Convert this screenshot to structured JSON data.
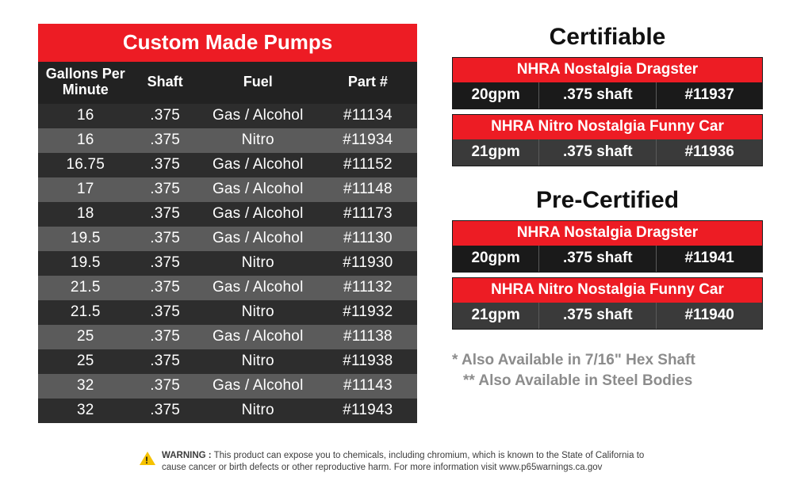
{
  "pumps": {
    "title": "Custom Made Pumps",
    "columns": {
      "gpm_line1": "Gallons Per",
      "gpm_line2": "Minute",
      "shaft": "Shaft",
      "fuel": "Fuel",
      "part": "Part #"
    },
    "rows": [
      {
        "gpm": "16",
        "shaft": ".375",
        "fuel": "Gas / Alcohol",
        "part": "#11134"
      },
      {
        "gpm": "16",
        "shaft": ".375",
        "fuel": "Nitro",
        "part": "#11934"
      },
      {
        "gpm": "16.75",
        "shaft": ".375",
        "fuel": "Gas / Alcohol",
        "part": "#11152"
      },
      {
        "gpm": "17",
        "shaft": ".375",
        "fuel": "Gas / Alcohol",
        "part": "#11148"
      },
      {
        "gpm": "18",
        "shaft": ".375",
        "fuel": "Gas / Alcohol",
        "part": "#11173"
      },
      {
        "gpm": "19.5",
        "shaft": ".375",
        "fuel": "Gas / Alcohol",
        "part": "#11130"
      },
      {
        "gpm": "19.5",
        "shaft": ".375",
        "fuel": "Nitro",
        "part": "#11930"
      },
      {
        "gpm": "21.5",
        "shaft": ".375",
        "fuel": "Gas / Alcohol",
        "part": "#11132"
      },
      {
        "gpm": "21.5",
        "shaft": ".375",
        "fuel": "Nitro",
        "part": "#11932"
      },
      {
        "gpm": "25",
        "shaft": ".375",
        "fuel": "Gas / Alcohol",
        "part": "#11138"
      },
      {
        "gpm": "25",
        "shaft": ".375",
        "fuel": "Nitro",
        "part": "#11938"
      },
      {
        "gpm": "32",
        "shaft": ".375",
        "fuel": "Gas / Alcohol",
        "part": "#11143"
      },
      {
        "gpm": "32",
        "shaft": ".375",
        "fuel": "Nitro",
        "part": "#11943"
      }
    ]
  },
  "certifiable": {
    "title": "Certifiable",
    "cards": [
      {
        "caption": "NHRA Nostalgia Dragster",
        "gpm": "20gpm",
        "shaft": ".375 shaft",
        "part": "#11937",
        "alt": false
      },
      {
        "caption": "NHRA Nitro Nostalgia Funny Car",
        "gpm": "21gpm",
        "shaft": ".375 shaft",
        "part": "#11936",
        "alt": true
      }
    ]
  },
  "precertified": {
    "title": "Pre-Certified",
    "cards": [
      {
        "caption": "NHRA Nostalgia Dragster",
        "gpm": "20gpm",
        "shaft": ".375 shaft",
        "part": "#11941",
        "alt": false
      },
      {
        "caption": "NHRA Nitro Nostalgia Funny Car",
        "gpm": "21gpm",
        "shaft": ".375 shaft",
        "part": "#11940",
        "alt": true
      }
    ]
  },
  "notes": {
    "line1": "* Also Available in 7/16\" Hex Shaft",
    "line2": "** Also Available in Steel Bodies"
  },
  "warning": {
    "label": "WARNING :",
    "text": "This product can expose you to chemicals, including chromium, which is known to the State of California to cause cancer or birth defects or other reproductive harm. For more information visit www.p65warnings.ca.gov"
  },
  "colors": {
    "accent": "#ed1c24",
    "row_dark": "#2d2d2d",
    "row_light": "#5b5b5b",
    "card_bg_dark": "#1a1a1a",
    "card_bg_alt": "#3a3a3a",
    "notes_color": "#8c8c8c"
  }
}
